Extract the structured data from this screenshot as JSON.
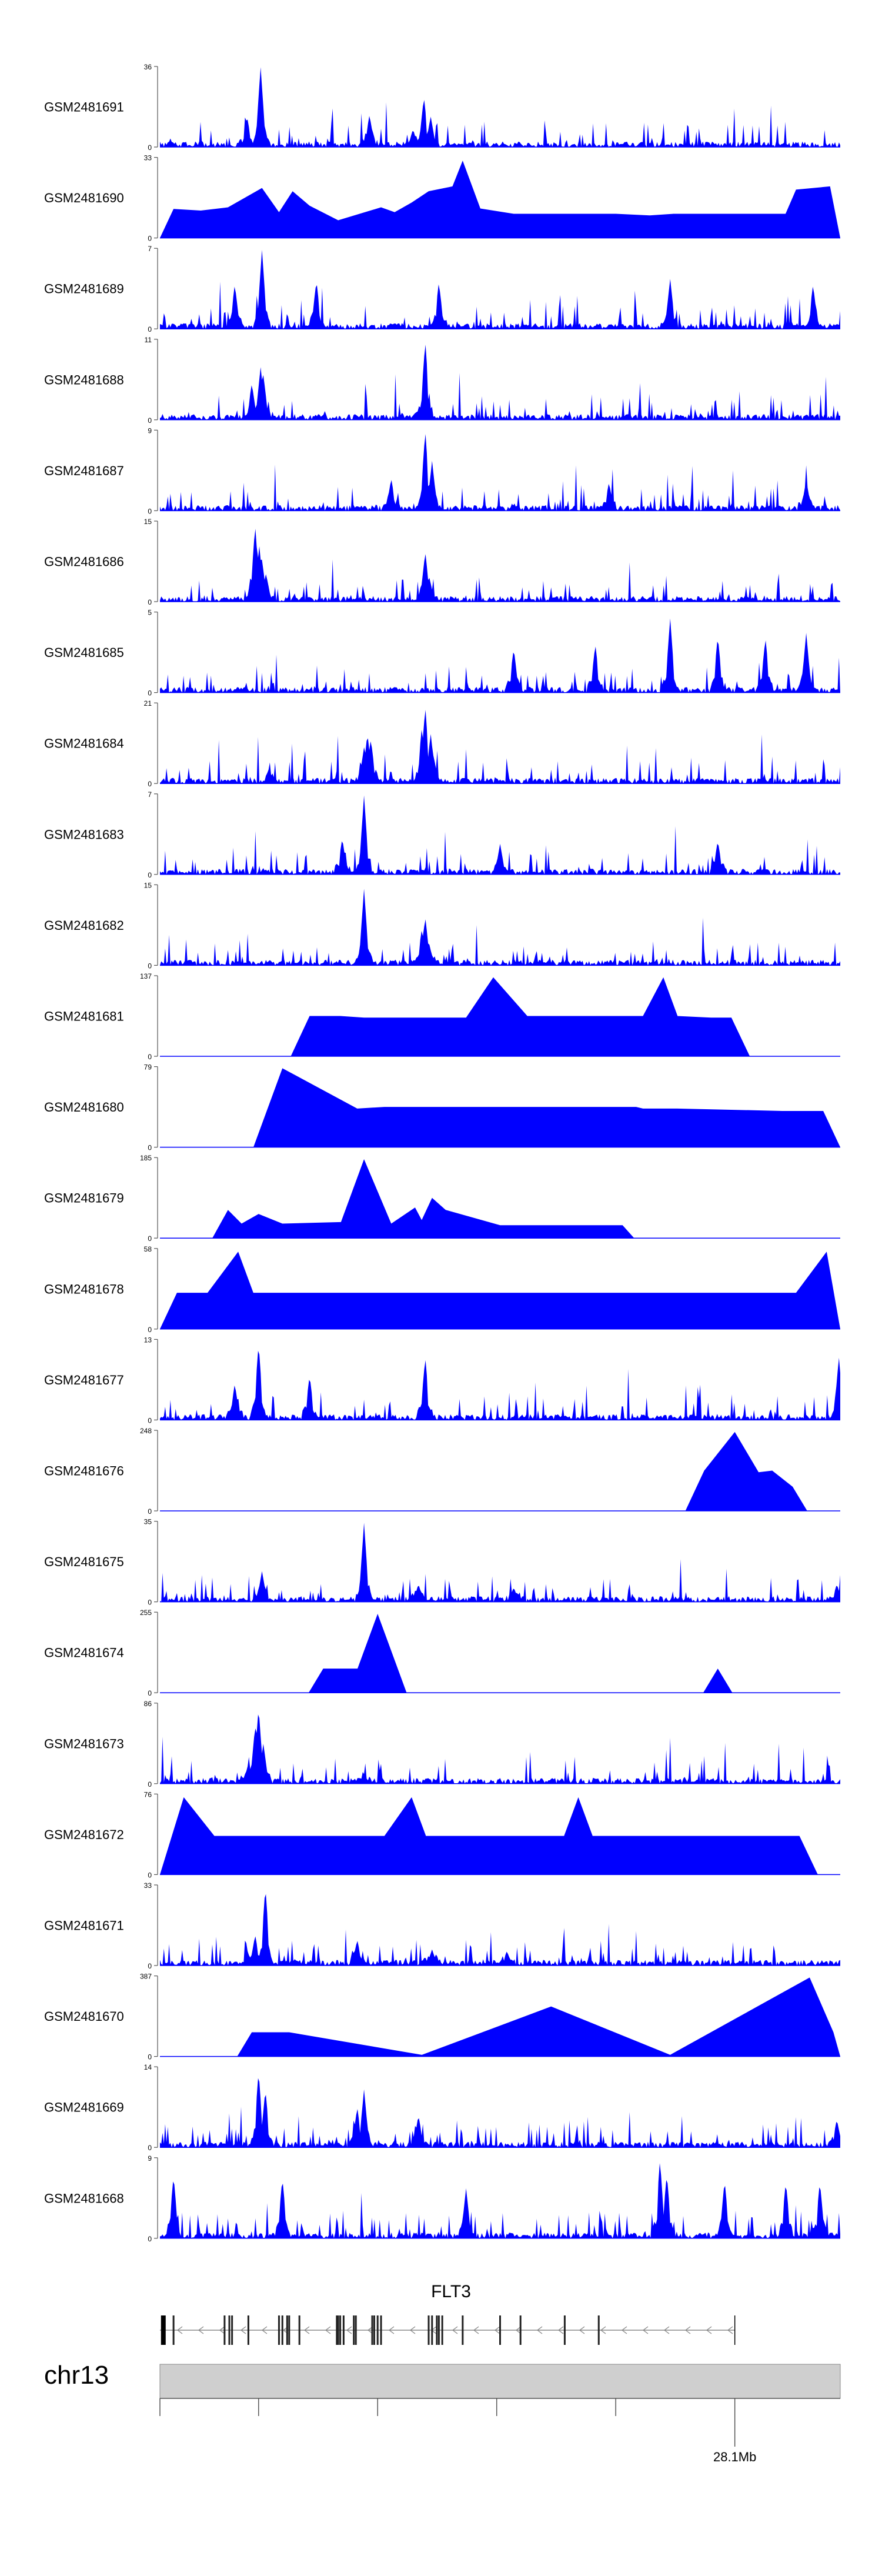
{
  "chart_data": {
    "type": "area",
    "title": "",
    "track_color": "#0000ff",
    "tracks": [
      {
        "sample": "GSM2481691",
        "ymax": 36,
        "style": "dense",
        "seed": 11,
        "peaks": [
          [
            0.148,
            1.0
          ],
          [
            0.128,
            0.38
          ],
          [
            0.308,
            0.4
          ],
          [
            0.388,
            0.62
          ],
          [
            0.398,
            0.38
          ],
          [
            0.372,
            0.22
          ]
        ]
      },
      {
        "sample": "GSM2481690",
        "ymax": 33,
        "style": "tri",
        "seed": 12,
        "peaks": [
          [
            0.02,
            0.36
          ],
          [
            0.06,
            0.34
          ],
          [
            0.1,
            0.38
          ],
          [
            0.15,
            0.62
          ],
          [
            0.175,
            0.32
          ],
          [
            0.195,
            0.58
          ],
          [
            0.22,
            0.4
          ],
          [
            0.262,
            0.22
          ],
          [
            0.325,
            0.38
          ],
          [
            0.345,
            0.32
          ],
          [
            0.37,
            0.44
          ],
          [
            0.395,
            0.58
          ],
          [
            0.43,
            0.64
          ],
          [
            0.445,
            0.96
          ],
          [
            0.46,
            0.38
          ],
          [
            0.52,
            0.3
          ],
          [
            0.62,
            0.3
          ],
          [
            0.67,
            0.3
          ],
          [
            0.72,
            0.28
          ],
          [
            0.755,
            0.3
          ],
          [
            0.83,
            0.3
          ],
          [
            0.9,
            0.3
          ],
          [
            0.93,
            0.3
          ],
          [
            0.935,
            0.6
          ],
          [
            0.985,
            0.64
          ]
        ]
      },
      {
        "sample": "GSM2481689",
        "ymax": 7,
        "style": "dense",
        "seed": 13,
        "peaks": [
          [
            0.15,
            0.98
          ],
          [
            0.11,
            0.55
          ],
          [
            0.23,
            0.6
          ],
          [
            0.41,
            0.58
          ],
          [
            0.75,
            0.62
          ],
          [
            0.96,
            0.55
          ]
        ]
      },
      {
        "sample": "GSM2481688",
        "ymax": 11,
        "style": "dense",
        "seed": 14,
        "peaks": [
          [
            0.148,
            0.66
          ],
          [
            0.152,
            0.56
          ],
          [
            0.135,
            0.45
          ],
          [
            0.39,
            0.98
          ],
          [
            0.388,
            0.4
          ]
        ]
      },
      {
        "sample": "GSM2481687",
        "ymax": 9,
        "style": "dense",
        "seed": 15,
        "peaks": [
          [
            0.39,
            1.0
          ],
          [
            0.4,
            0.62
          ],
          [
            0.34,
            0.4
          ],
          [
            0.66,
            0.35
          ],
          [
            0.95,
            0.38
          ]
        ]
      },
      {
        "sample": "GSM2481686",
        "ymax": 15,
        "style": "dense",
        "seed": 16,
        "peaks": [
          [
            0.14,
            0.95
          ],
          [
            0.146,
            0.7
          ],
          [
            0.15,
            0.52
          ],
          [
            0.156,
            0.35
          ],
          [
            0.39,
            0.62
          ],
          [
            0.396,
            0.3
          ]
        ]
      },
      {
        "sample": "GSM2481685",
        "ymax": 5,
        "style": "dense",
        "seed": 17,
        "peaks": [
          [
            0.75,
            0.92
          ],
          [
            0.82,
            0.7
          ],
          [
            0.89,
            0.68
          ],
          [
            0.95,
            0.74
          ],
          [
            0.64,
            0.6
          ],
          [
            0.52,
            0.55
          ]
        ]
      },
      {
        "sample": "GSM2481684",
        "ymax": 21,
        "style": "dense",
        "seed": 18,
        "peaks": [
          [
            0.3,
            0.45
          ],
          [
            0.305,
            0.62
          ],
          [
            0.31,
            0.55
          ],
          [
            0.39,
            0.96
          ],
          [
            0.385,
            0.7
          ],
          [
            0.398,
            0.62
          ],
          [
            0.402,
            0.35
          ],
          [
            0.16,
            0.18
          ]
        ]
      },
      {
        "sample": "GSM2481683",
        "ymax": 7,
        "style": "dense",
        "seed": 19,
        "peaks": [
          [
            0.3,
            0.98
          ],
          [
            0.268,
            0.45
          ],
          [
            0.5,
            0.38
          ],
          [
            0.82,
            0.42
          ]
        ]
      },
      {
        "sample": "GSM2481682",
        "ymax": 15,
        "style": "dense",
        "seed": 20,
        "peaks": [
          [
            0.3,
            0.95
          ],
          [
            0.302,
            0.4
          ],
          [
            0.39,
            0.6
          ],
          [
            0.385,
            0.45
          ],
          [
            0.395,
            0.3
          ]
        ]
      },
      {
        "sample": "GSM2481681",
        "ymax": 137,
        "style": "tri",
        "seed": 21,
        "peaks": [
          [
            0.22,
            0.5
          ],
          [
            0.265,
            0.5
          ],
          [
            0.3,
            0.48
          ],
          [
            0.39,
            0.48
          ],
          [
            0.45,
            0.48
          ],
          [
            0.49,
            0.98
          ],
          [
            0.54,
            0.5
          ],
          [
            0.61,
            0.5
          ],
          [
            0.71,
            0.5
          ],
          [
            0.74,
            0.98
          ],
          [
            0.76,
            0.5
          ],
          [
            0.81,
            0.48
          ],
          [
            0.84,
            0.48
          ]
        ]
      },
      {
        "sample": "GSM2481680",
        "ymax": 79,
        "style": "tri",
        "seed": 22,
        "peaks": [
          [
            0.18,
            0.98
          ],
          [
            0.29,
            0.48
          ],
          [
            0.33,
            0.5
          ],
          [
            0.375,
            0.5
          ],
          [
            0.41,
            0.5
          ],
          [
            0.505,
            0.5
          ],
          [
            0.56,
            0.5
          ],
          [
            0.575,
            0.5
          ],
          [
            0.62,
            0.5
          ],
          [
            0.7,
            0.5
          ],
          [
            0.71,
            0.48
          ],
          [
            0.76,
            0.48
          ],
          [
            0.915,
            0.45
          ],
          [
            0.975,
            0.45
          ]
        ]
      },
      {
        "sample": "GSM2481679",
        "ymax": 185,
        "style": "tri",
        "seed": 23,
        "peaks": [
          [
            0.1,
            0.35
          ],
          [
            0.12,
            0.18
          ],
          [
            0.145,
            0.3
          ],
          [
            0.18,
            0.18
          ],
          [
            0.27,
            0.2
          ],
          [
            0.28,
            0.35
          ],
          [
            0.3,
            0.98
          ],
          [
            0.34,
            0.18
          ],
          [
            0.375,
            0.38
          ],
          [
            0.385,
            0.18
          ],
          [
            0.4,
            0.5
          ],
          [
            0.42,
            0.35
          ],
          [
            0.5,
            0.16
          ],
          [
            0.68,
            0.16
          ]
        ]
      },
      {
        "sample": "GSM2481678",
        "ymax": 58,
        "style": "tri",
        "seed": 24,
        "peaks": [
          [
            0.025,
            0.45
          ],
          [
            0.07,
            0.45
          ],
          [
            0.115,
            0.96
          ],
          [
            0.125,
            0.45
          ],
          [
            0.18,
            0.45
          ],
          [
            0.205,
            0.45
          ],
          [
            0.245,
            0.45
          ],
          [
            0.43,
            0.45
          ],
          [
            0.47,
            0.45
          ],
          [
            0.545,
            0.45
          ],
          [
            0.57,
            0.45
          ],
          [
            0.605,
            0.45
          ],
          [
            0.64,
            0.45
          ],
          [
            0.67,
            0.45
          ],
          [
            0.73,
            0.45
          ],
          [
            0.835,
            0.45
          ],
          [
            0.87,
            0.45
          ],
          [
            0.89,
            0.45
          ],
          [
            0.935,
            0.45
          ],
          [
            0.98,
            0.96
          ]
        ]
      },
      {
        "sample": "GSM2481677",
        "ymax": 13,
        "style": "dense",
        "seed": 25,
        "peaks": [
          [
            0.145,
            0.95
          ],
          [
            0.22,
            0.55
          ],
          [
            0.39,
            0.78
          ],
          [
            0.998,
            0.78
          ],
          [
            0.11,
            0.45
          ]
        ]
      },
      {
        "sample": "GSM2481676",
        "ymax": 248,
        "style": "tri",
        "seed": 26,
        "peaks": [
          [
            0.8,
            0.5
          ],
          [
            0.845,
            0.98
          ],
          [
            0.88,
            0.48
          ],
          [
            0.9,
            0.5
          ],
          [
            0.93,
            0.3
          ]
        ]
      },
      {
        "sample": "GSM2481675",
        "ymax": 35,
        "style": "dense",
        "seed": 27,
        "peaks": [
          [
            0.3,
            0.98
          ],
          [
            0.15,
            0.38
          ],
          [
            0.38,
            0.22
          ],
          [
            0.52,
            0.18
          ],
          [
            0.995,
            0.22
          ]
        ]
      },
      {
        "sample": "GSM2481674",
        "ymax": 255,
        "style": "tri",
        "seed": 28,
        "peaks": [
          [
            0.24,
            0.3
          ],
          [
            0.3,
            0.3
          ],
          [
            0.32,
            0.98
          ],
          [
            0.82,
            0.3
          ]
        ]
      },
      {
        "sample": "GSM2481673",
        "ymax": 86,
        "style": "dense",
        "seed": 29,
        "peaks": [
          [
            0.145,
            0.95
          ],
          [
            0.14,
            0.72
          ],
          [
            0.152,
            0.5
          ],
          [
            0.13,
            0.25
          ],
          [
            0.3,
            0.12
          ]
        ]
      },
      {
        "sample": "GSM2481672",
        "ymax": 76,
        "style": "tri",
        "seed": 30,
        "peaks": [
          [
            0.035,
            0.96
          ],
          [
            0.08,
            0.48
          ],
          [
            0.12,
            0.48
          ],
          [
            0.16,
            0.48
          ],
          [
            0.22,
            0.48
          ],
          [
            0.33,
            0.48
          ],
          [
            0.37,
            0.96
          ],
          [
            0.38,
            0.48
          ],
          [
            0.5,
            0.48
          ],
          [
            0.6,
            0.48
          ],
          [
            0.615,
            0.96
          ],
          [
            0.63,
            0.48
          ],
          [
            0.71,
            0.48
          ],
          [
            0.9,
            0.48
          ],
          [
            0.915,
            0.48
          ],
          [
            0.94,
            0.48
          ]
        ]
      },
      {
        "sample": "GSM2481671",
        "ymax": 33,
        "style": "dense",
        "seed": 31,
        "peaks": [
          [
            0.155,
            0.98
          ],
          [
            0.14,
            0.38
          ],
          [
            0.29,
            0.32
          ],
          [
            0.4,
            0.2
          ],
          [
            0.51,
            0.18
          ]
        ]
      },
      {
        "sample": "GSM2481670",
        "ymax": 387,
        "style": "tri",
        "seed": 32,
        "peaks": [
          [
            0.135,
            0.3
          ],
          [
            0.19,
            0.3
          ],
          [
            0.385,
            0.02
          ],
          [
            0.575,
            0.62
          ],
          [
            0.75,
            0.02
          ],
          [
            0.955,
            0.98
          ],
          [
            0.99,
            0.3
          ]
        ]
      },
      {
        "sample": "GSM2481669",
        "ymax": 14,
        "style": "dense",
        "seed": 33,
        "peaks": [
          [
            0.145,
            0.95
          ],
          [
            0.155,
            0.72
          ],
          [
            0.3,
            0.72
          ],
          [
            0.29,
            0.5
          ],
          [
            0.38,
            0.4
          ],
          [
            0.995,
            0.35
          ]
        ]
      },
      {
        "sample": "GSM2481668",
        "ymax": 9,
        "style": "dense",
        "seed": 34,
        "peaks": [
          [
            0.735,
            0.98
          ],
          [
            0.745,
            0.8
          ],
          [
            0.02,
            0.78
          ],
          [
            0.18,
            0.75
          ],
          [
            0.45,
            0.62
          ],
          [
            0.83,
            0.72
          ],
          [
            0.92,
            0.7
          ],
          [
            0.97,
            0.7
          ]
        ]
      }
    ],
    "gene": {
      "name": "FLT3",
      "start_frac": 0.0,
      "end_frac": 0.845,
      "exons": [
        0.005,
        0.02,
        0.095,
        0.102,
        0.106,
        0.13,
        0.175,
        0.18,
        0.187,
        0.19,
        0.205,
        0.26,
        0.262,
        0.265,
        0.27,
        0.285,
        0.288,
        0.312,
        0.315,
        0.32,
        0.325,
        0.395,
        0.4,
        0.407,
        0.41,
        0.415,
        0.445,
        0.5,
        0.53,
        0.595,
        0.645
      ]
    },
    "chromosome": "chr13",
    "axis": {
      "ticks": [
        0.0,
        0.145,
        0.32,
        0.495,
        0.67,
        0.845
      ],
      "labeled_tick": 0.845,
      "label": "28.1Mb"
    }
  }
}
